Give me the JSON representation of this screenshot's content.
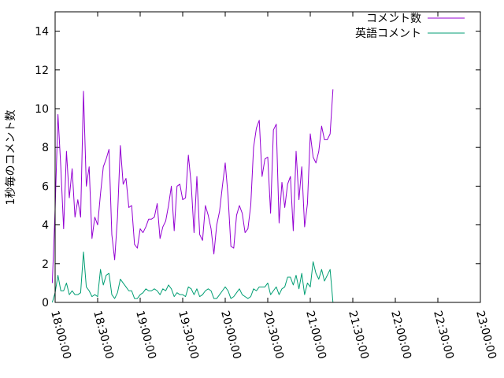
{
  "chart_data": {
    "type": "line",
    "title": "",
    "xlabel": "",
    "ylabel": "1秒毎のコメント数",
    "ylim": [
      0,
      15
    ],
    "xlim": [
      "18:00:00",
      "23:00:00"
    ],
    "yticks": [
      0,
      2,
      4,
      6,
      8,
      10,
      12,
      14
    ],
    "xticks": [
      "18:00:00",
      "18:30:00",
      "19:00:00",
      "19:30:00",
      "20:00:00",
      "20:30:00",
      "21:00:00",
      "21:30:00",
      "22:00:00",
      "22:30:00",
      "23:00:00"
    ],
    "grid": false,
    "legend_position": "top-right",
    "series": [
      {
        "name": "コメント数",
        "color": "#9400d3",
        "points": [
          [
            "17:58:00",
            1.0
          ],
          [
            "18:00:00",
            4.8
          ],
          [
            "18:02:00",
            9.7
          ],
          [
            "18:04:00",
            7.0
          ],
          [
            "18:06:00",
            3.8
          ],
          [
            "18:08:00",
            7.8
          ],
          [
            "18:10:00",
            5.4
          ],
          [
            "18:12:00",
            6.9
          ],
          [
            "18:14:00",
            4.4
          ],
          [
            "18:16:00",
            5.3
          ],
          [
            "18:18:00",
            4.4
          ],
          [
            "18:20:00",
            10.9
          ],
          [
            "18:22:00",
            6.0
          ],
          [
            "18:24:00",
            7.0
          ],
          [
            "18:26:00",
            3.3
          ],
          [
            "18:28:00",
            4.4
          ],
          [
            "18:30:00",
            4.0
          ],
          [
            "18:32:00",
            5.6
          ],
          [
            "18:34:00",
            7.0
          ],
          [
            "18:36:00",
            7.4
          ],
          [
            "18:38:00",
            7.9
          ],
          [
            "18:40:00",
            3.5
          ],
          [
            "18:42:00",
            2.2
          ],
          [
            "18:44:00",
            4.4
          ],
          [
            "18:46:00",
            8.1
          ],
          [
            "18:48:00",
            6.1
          ],
          [
            "18:50:00",
            6.4
          ],
          [
            "18:52:00",
            4.9
          ],
          [
            "18:54:00",
            5.0
          ],
          [
            "18:56:00",
            3.0
          ],
          [
            "18:58:00",
            2.8
          ],
          [
            "19:00:00",
            3.8
          ],
          [
            "19:02:00",
            3.6
          ],
          [
            "19:04:00",
            3.9
          ],
          [
            "19:06:00",
            4.3
          ],
          [
            "19:08:00",
            4.3
          ],
          [
            "19:10:00",
            4.4
          ],
          [
            "19:12:00",
            5.1
          ],
          [
            "19:14:00",
            3.3
          ],
          [
            "19:16:00",
            3.9
          ],
          [
            "19:18:00",
            4.2
          ],
          [
            "19:20:00",
            5.0
          ],
          [
            "19:22:00",
            6.0
          ],
          [
            "19:24:00",
            3.7
          ],
          [
            "19:26:00",
            6.0
          ],
          [
            "19:28:00",
            6.1
          ],
          [
            "19:30:00",
            5.3
          ],
          [
            "19:32:00",
            5.4
          ],
          [
            "19:34:00",
            7.6
          ],
          [
            "19:36:00",
            6.1
          ],
          [
            "19:38:00",
            3.6
          ],
          [
            "19:40:00",
            6.5
          ],
          [
            "19:42:00",
            3.5
          ],
          [
            "19:44:00",
            3.2
          ],
          [
            "19:46:00",
            5.0
          ],
          [
            "19:48:00",
            4.5
          ],
          [
            "19:50:00",
            3.8
          ],
          [
            "19:52:00",
            2.5
          ],
          [
            "19:54:00",
            4.0
          ],
          [
            "19:56:00",
            4.7
          ],
          [
            "19:58:00",
            6.0
          ],
          [
            "20:00:00",
            7.2
          ],
          [
            "20:02:00",
            5.5
          ],
          [
            "20:04:00",
            2.9
          ],
          [
            "20:06:00",
            2.8
          ],
          [
            "20:08:00",
            4.5
          ],
          [
            "20:10:00",
            5.0
          ],
          [
            "20:12:00",
            4.6
          ],
          [
            "20:14:00",
            3.6
          ],
          [
            "20:16:00",
            3.8
          ],
          [
            "20:18:00",
            5.0
          ],
          [
            "20:20:00",
            8.0
          ],
          [
            "20:22:00",
            9.0
          ],
          [
            "20:24:00",
            9.4
          ],
          [
            "20:26:00",
            6.5
          ],
          [
            "20:28:00",
            7.4
          ],
          [
            "20:30:00",
            7.5
          ],
          [
            "20:32:00",
            4.6
          ],
          [
            "20:34:00",
            8.9
          ],
          [
            "20:36:00",
            9.2
          ],
          [
            "20:38:00",
            4.1
          ],
          [
            "20:40:00",
            6.2
          ],
          [
            "20:42:00",
            4.9
          ],
          [
            "20:44:00",
            6.1
          ],
          [
            "20:46:00",
            6.5
          ],
          [
            "20:48:00",
            3.7
          ],
          [
            "20:50:00",
            7.8
          ],
          [
            "20:52:00",
            5.3
          ],
          [
            "20:54:00",
            7.0
          ],
          [
            "20:56:00",
            3.9
          ],
          [
            "20:58:00",
            5.1
          ],
          [
            "21:00:00",
            8.7
          ],
          [
            "21:02:00",
            7.5
          ],
          [
            "21:04:00",
            7.2
          ],
          [
            "21:06:00",
            7.8
          ],
          [
            "21:08:00",
            9.1
          ],
          [
            "21:10:00",
            8.4
          ],
          [
            "21:12:00",
            8.4
          ],
          [
            "21:14:00",
            8.7
          ],
          [
            "21:16:00",
            11.0
          ]
        ]
      },
      {
        "name": "英語コメント",
        "color": "#009e73",
        "points": [
          [
            "17:58:00",
            0.0
          ],
          [
            "18:00:00",
            0.5
          ],
          [
            "18:02:00",
            1.4
          ],
          [
            "18:04:00",
            0.6
          ],
          [
            "18:06:00",
            0.6
          ],
          [
            "18:08:00",
            1.0
          ],
          [
            "18:10:00",
            0.4
          ],
          [
            "18:12:00",
            0.6
          ],
          [
            "18:14:00",
            0.4
          ],
          [
            "18:16:00",
            0.4
          ],
          [
            "18:18:00",
            0.5
          ],
          [
            "18:20:00",
            2.6
          ],
          [
            "18:22:00",
            0.8
          ],
          [
            "18:24:00",
            0.6
          ],
          [
            "18:26:00",
            0.3
          ],
          [
            "18:28:00",
            0.4
          ],
          [
            "18:30:00",
            0.3
          ],
          [
            "18:32:00",
            1.7
          ],
          [
            "18:34:00",
            0.9
          ],
          [
            "18:36:00",
            1.4
          ],
          [
            "18:38:00",
            1.5
          ],
          [
            "18:40:00",
            0.4
          ],
          [
            "18:42:00",
            0.2
          ],
          [
            "18:44:00",
            0.5
          ],
          [
            "18:46:00",
            1.2
          ],
          [
            "18:48:00",
            1.0
          ],
          [
            "18:50:00",
            0.8
          ],
          [
            "18:52:00",
            0.6
          ],
          [
            "18:54:00",
            0.6
          ],
          [
            "18:56:00",
            0.2
          ],
          [
            "18:58:00",
            0.2
          ],
          [
            "19:00:00",
            0.4
          ],
          [
            "19:02:00",
            0.5
          ],
          [
            "19:04:00",
            0.7
          ],
          [
            "19:06:00",
            0.6
          ],
          [
            "19:08:00",
            0.6
          ],
          [
            "19:10:00",
            0.7
          ],
          [
            "19:12:00",
            0.6
          ],
          [
            "19:14:00",
            0.4
          ],
          [
            "19:16:00",
            0.7
          ],
          [
            "19:18:00",
            0.6
          ],
          [
            "19:20:00",
            0.9
          ],
          [
            "19:22:00",
            0.7
          ],
          [
            "19:24:00",
            0.3
          ],
          [
            "19:26:00",
            0.5
          ],
          [
            "19:28:00",
            0.4
          ],
          [
            "19:30:00",
            0.4
          ],
          [
            "19:32:00",
            0.3
          ],
          [
            "19:34:00",
            0.8
          ],
          [
            "19:36:00",
            0.7
          ],
          [
            "19:38:00",
            0.4
          ],
          [
            "19:40:00",
            0.7
          ],
          [
            "19:42:00",
            0.3
          ],
          [
            "19:44:00",
            0.4
          ],
          [
            "19:46:00",
            0.6
          ],
          [
            "19:48:00",
            0.7
          ],
          [
            "19:50:00",
            0.6
          ],
          [
            "19:52:00",
            0.2
          ],
          [
            "19:54:00",
            0.2
          ],
          [
            "19:56:00",
            0.4
          ],
          [
            "19:58:00",
            0.6
          ],
          [
            "20:00:00",
            0.8
          ],
          [
            "20:02:00",
            0.6
          ],
          [
            "20:04:00",
            0.2
          ],
          [
            "20:06:00",
            0.3
          ],
          [
            "20:08:00",
            0.5
          ],
          [
            "20:10:00",
            0.7
          ],
          [
            "20:12:00",
            0.4
          ],
          [
            "20:14:00",
            0.3
          ],
          [
            "20:16:00",
            0.2
          ],
          [
            "20:18:00",
            0.3
          ],
          [
            "20:20:00",
            0.7
          ],
          [
            "20:22:00",
            0.6
          ],
          [
            "20:24:00",
            0.8
          ],
          [
            "20:26:00",
            0.8
          ],
          [
            "20:28:00",
            0.8
          ],
          [
            "20:30:00",
            1.0
          ],
          [
            "20:32:00",
            0.4
          ],
          [
            "20:34:00",
            0.6
          ],
          [
            "20:36:00",
            0.8
          ],
          [
            "20:38:00",
            0.4
          ],
          [
            "20:40:00",
            0.7
          ],
          [
            "20:42:00",
            0.8
          ],
          [
            "20:44:00",
            1.3
          ],
          [
            "20:46:00",
            1.3
          ],
          [
            "20:48:00",
            0.9
          ],
          [
            "20:50:00",
            1.4
          ],
          [
            "20:52:00",
            0.7
          ],
          [
            "20:54:00",
            1.5
          ],
          [
            "20:56:00",
            0.4
          ],
          [
            "20:58:00",
            1.0
          ],
          [
            "21:00:00",
            0.8
          ],
          [
            "21:02:00",
            2.1
          ],
          [
            "21:04:00",
            1.5
          ],
          [
            "21:06:00",
            1.2
          ],
          [
            "21:08:00",
            1.7
          ],
          [
            "21:10:00",
            1.1
          ],
          [
            "21:12:00",
            1.4
          ],
          [
            "21:14:00",
            1.7
          ],
          [
            "21:16:00",
            0.0
          ]
        ]
      }
    ]
  }
}
